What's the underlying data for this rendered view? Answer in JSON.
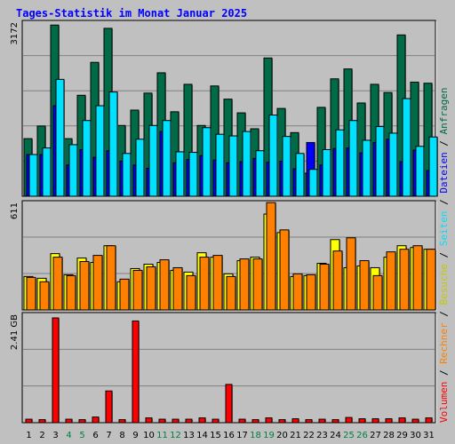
{
  "chart_data": [
    {
      "type": "bar",
      "title": "Tages-Statistik im Monat Januar 2025",
      "ylabel": "3172",
      "ylim": [
        0,
        3172
      ],
      "categories": [
        "1",
        "2",
        "3",
        "4",
        "5",
        "6",
        "7",
        "8",
        "9",
        "10",
        "11",
        "12",
        "13",
        "14",
        "15",
        "16",
        "17",
        "18",
        "19",
        "20",
        "21",
        "22",
        "23",
        "24",
        "25",
        "26",
        "27",
        "28",
        "29",
        "30",
        "31"
      ],
      "weekend_days": [
        "4",
        "5",
        "11",
        "12",
        "18",
        "19",
        "25",
        "26"
      ],
      "colors": {
        "title": "#0000ff",
        "weekend": "#008040",
        "weekday": "#000000"
      },
      "series": [
        {
          "name": "Anfragen",
          "color": "#006b47",
          "values": [
            1050,
            1280,
            3120,
            1050,
            1840,
            2440,
            3060,
            1290,
            1570,
            1880,
            2250,
            1540,
            2040,
            1290,
            2010,
            1770,
            1520,
            1230,
            2520,
            1600,
            1160,
            420,
            1620,
            2140,
            2320,
            1700,
            2040,
            1890,
            2940,
            2080,
            2060
          ]
        },
        {
          "name": "Dateien",
          "color": "#0000ff",
          "values": [
            760,
            760,
            1650,
            570,
            850,
            710,
            830,
            640,
            570,
            510,
            1180,
            610,
            670,
            740,
            660,
            610,
            630,
            690,
            620,
            640,
            500,
            980,
            570,
            870,
            880,
            790,
            980,
            1040,
            630,
            840,
            470
          ]
        },
        {
          "name": "Seiten",
          "color": "#00e0ff",
          "values": [
            760,
            880,
            2130,
            940,
            1380,
            1650,
            1900,
            780,
            1040,
            1290,
            1380,
            810,
            800,
            1250,
            1130,
            1100,
            1180,
            830,
            1480,
            1090,
            780,
            490,
            850,
            1210,
            1380,
            1020,
            1270,
            1150,
            1780,
            910,
            1080
          ]
        }
      ]
    },
    {
      "type": "bar",
      "ylabel": "611",
      "ylim": [
        0,
        611
      ],
      "categories": [
        "1",
        "2",
        "3",
        "4",
        "5",
        "6",
        "7",
        "8",
        "9",
        "10",
        "11",
        "12",
        "13",
        "14",
        "15",
        "16",
        "17",
        "18",
        "19",
        "20",
        "21",
        "22",
        "23",
        "24",
        "25",
        "26",
        "27",
        "28",
        "29",
        "30",
        "31"
      ],
      "series": [
        {
          "name": "Besuche",
          "color": "#ffff00",
          "values": [
            190,
            180,
            320,
            200,
            295,
            270,
            365,
            160,
            235,
            260,
            270,
            225,
            215,
            325,
            300,
            205,
            280,
            300,
            545,
            440,
            190,
            195,
            265,
            400,
            240,
            250,
            240,
            300,
            365,
            355,
            345
          ]
        },
        {
          "name": "Rechner",
          "color": "#ff8000",
          "values": [
            185,
            160,
            300,
            195,
            275,
            310,
            365,
            175,
            225,
            245,
            285,
            240,
            195,
            300,
            310,
            190,
            290,
            290,
            610,
            455,
            205,
            200,
            260,
            335,
            410,
            280,
            195,
            330,
            345,
            365,
            345
          ]
        }
      ]
    },
    {
      "type": "bar",
      "ylabel": "2.41 GB",
      "ylim": [
        0,
        2.41
      ],
      "categories": [
        "1",
        "2",
        "3",
        "4",
        "5",
        "6",
        "7",
        "8",
        "9",
        "10",
        "11",
        "12",
        "13",
        "14",
        "15",
        "16",
        "17",
        "18",
        "19",
        "20",
        "21",
        "22",
        "23",
        "24",
        "25",
        "26",
        "27",
        "28",
        "29",
        "30",
        "31"
      ],
      "series": [
        {
          "name": "Volumen",
          "color": "#ff0000",
          "values": [
            0.08,
            0.07,
            2.41,
            0.08,
            0.07,
            0.13,
            0.73,
            0.07,
            2.34,
            0.11,
            0.08,
            0.08,
            0.08,
            0.11,
            0.08,
            0.88,
            0.08,
            0.07,
            0.11,
            0.07,
            0.09,
            0.07,
            0.08,
            0.07,
            0.12,
            0.09,
            0.09,
            0.09,
            0.11,
            0.08,
            0.11
          ]
        }
      ]
    }
  ],
  "legend_text": "Volumen / Rechner / Besuche / Seiten / Dateien / Anfragen"
}
